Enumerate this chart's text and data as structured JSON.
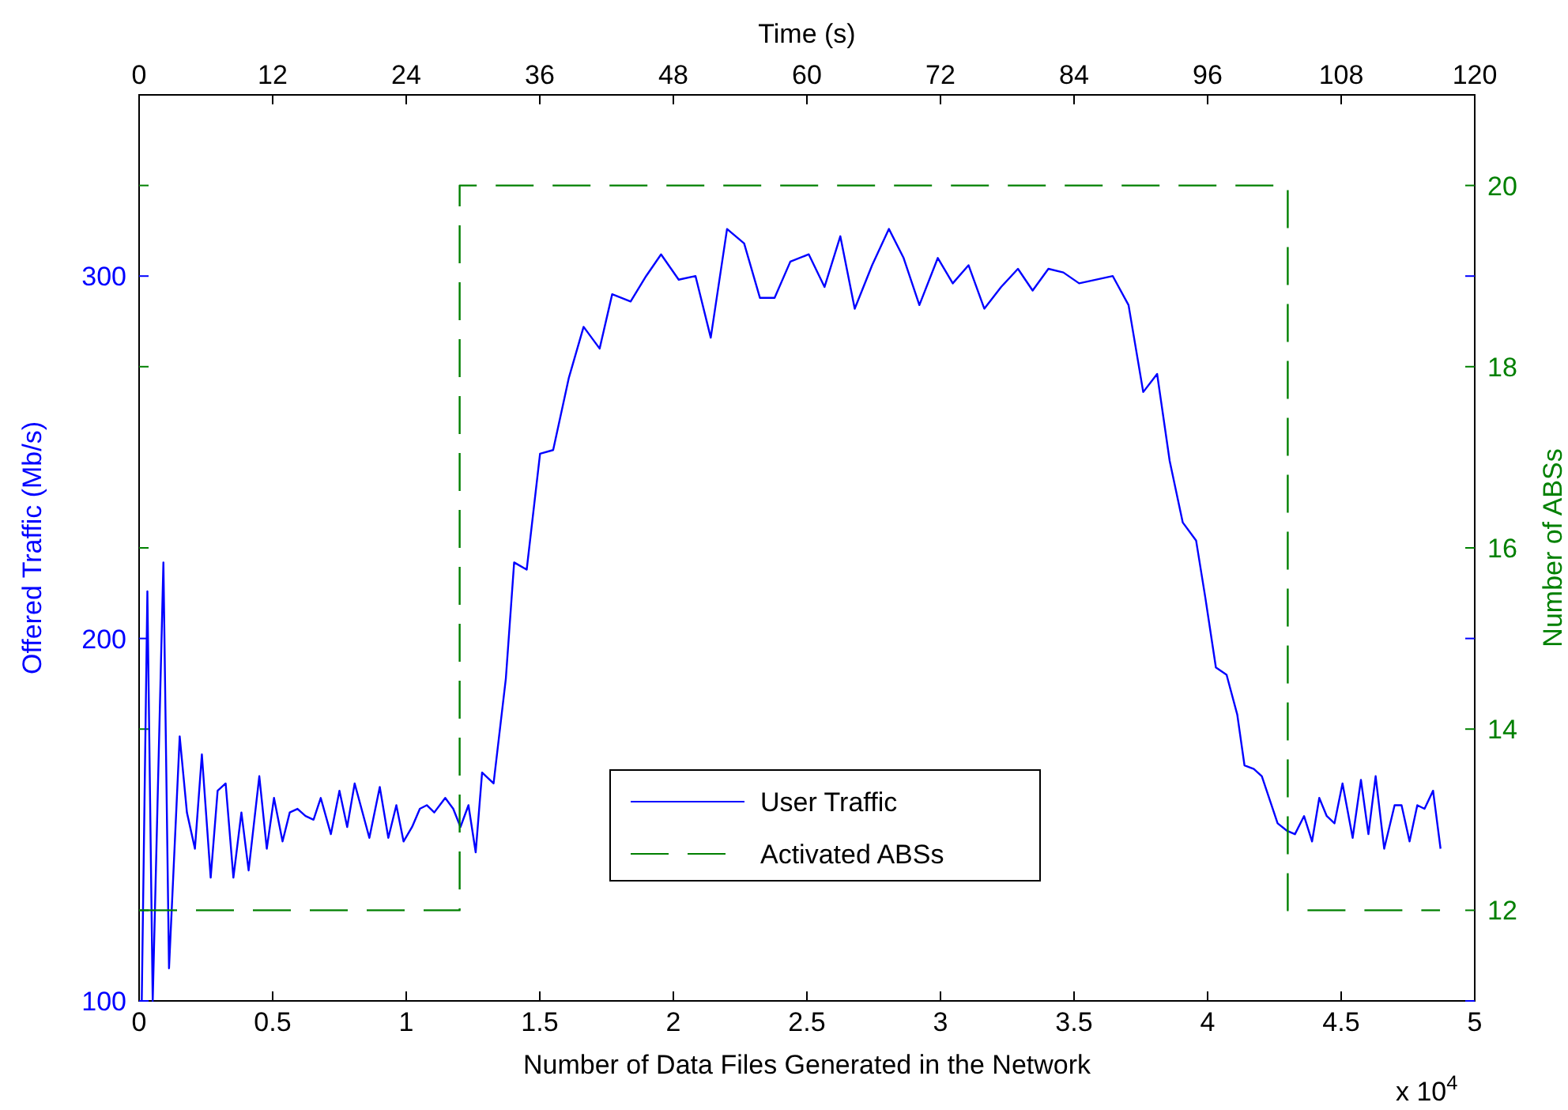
{
  "chart_data": {
    "type": "line",
    "xlabel": "Number of Data Files Generated in the Network",
    "ylabel": "Offered Traffic (Mb/s)",
    "y2label": "Number of ABSs",
    "x2label": "Time (s)",
    "xlim": [
      0,
      5
    ],
    "xticks": [
      0,
      0.5,
      1,
      1.5,
      2,
      2.5,
      3,
      3.5,
      4,
      4.5,
      5
    ],
    "x2lim": [
      0,
      120
    ],
    "x2ticks": [
      0,
      12,
      24,
      36,
      48,
      60,
      72,
      84,
      96,
      108,
      120
    ],
    "ylim": [
      100,
      350
    ],
    "yticks": [
      100,
      200,
      300
    ],
    "y2lim": [
      11,
      21
    ],
    "y2ticks": [
      12,
      14,
      16,
      18,
      20
    ],
    "legend": "bottom",
    "annotations": [
      "x 10$^{4}$"
    ],
    "series": [
      {
        "name": "User Traffic",
        "color": "#0000ff",
        "line_style": "solid",
        "x": [
          0.01,
          0.031,
          0.051,
          0.091,
          0.112,
          0.152,
          0.179,
          0.209,
          0.235,
          0.268,
          0.294,
          0.324,
          0.353,
          0.383,
          0.41,
          0.45,
          0.478,
          0.505,
          0.537,
          0.564,
          0.593,
          0.623,
          0.653,
          0.68,
          0.718,
          0.75,
          0.779,
          0.807,
          0.862,
          0.901,
          0.933,
          0.963,
          0.99,
          1.022,
          1.051,
          1.077,
          1.105,
          1.146,
          1.176,
          1.203,
          1.233,
          1.26,
          1.284,
          1.327,
          1.373,
          1.404,
          1.451,
          1.501,
          1.55,
          1.609,
          1.664,
          1.724,
          1.771,
          1.84,
          1.898,
          1.954,
          2.02,
          2.083,
          2.14,
          2.201,
          2.265,
          2.324,
          2.379,
          2.438,
          2.507,
          2.566,
          2.625,
          2.679,
          2.744,
          2.807,
          2.862,
          2.921,
          2.99,
          3.046,
          3.105,
          3.164,
          3.227,
          3.29,
          3.345,
          3.404,
          3.46,
          3.519,
          3.645,
          3.704,
          3.759,
          3.811,
          3.858,
          3.907,
          3.957,
          3.992,
          4.031,
          4.071,
          4.111,
          4.138,
          4.173,
          4.203,
          4.262,
          4.296,
          4.327,
          4.361,
          4.391,
          4.418,
          4.446,
          4.475,
          4.505,
          4.543,
          4.574,
          4.602,
          4.629,
          4.661,
          4.7,
          4.726,
          4.756,
          4.785,
          4.812,
          4.844,
          4.872
        ],
        "values": [
          100,
          213,
          100,
          221,
          109,
          173,
          152,
          142,
          168,
          134,
          158,
          160,
          134,
          152,
          136,
          162,
          142,
          156,
          144,
          152,
          153,
          151,
          150,
          156,
          146,
          158,
          148,
          160,
          145,
          159,
          145,
          154,
          144,
          148,
          153,
          154,
          152,
          156,
          153,
          148,
          154,
          141,
          163,
          160,
          189,
          221,
          219,
          251,
          252,
          272,
          286,
          280,
          295,
          293,
          300,
          306,
          299,
          300,
          283,
          313,
          309,
          294,
          294,
          304,
          306,
          297,
          311,
          291,
          303,
          313,
          305,
          292,
          305,
          298,
          303,
          291,
          297,
          302,
          296,
          302,
          301,
          298,
          300,
          292,
          268,
          273,
          249,
          232,
          227,
          211,
          192,
          190,
          179,
          165,
          164,
          162,
          149,
          147,
          146,
          151,
          144,
          156,
          151,
          149,
          160,
          145,
          161,
          146,
          162,
          142,
          154,
          154,
          144,
          154,
          153,
          158,
          142
        ]
      },
      {
        "name": "Activated ABSs",
        "color": "#008000",
        "line_style": "dashed",
        "axis": "y2",
        "x": [
          0,
          1.2,
          1.2,
          4.3,
          4.3,
          4.87
        ],
        "values": [
          12,
          12,
          20,
          20,
          12,
          12
        ]
      }
    ]
  }
}
